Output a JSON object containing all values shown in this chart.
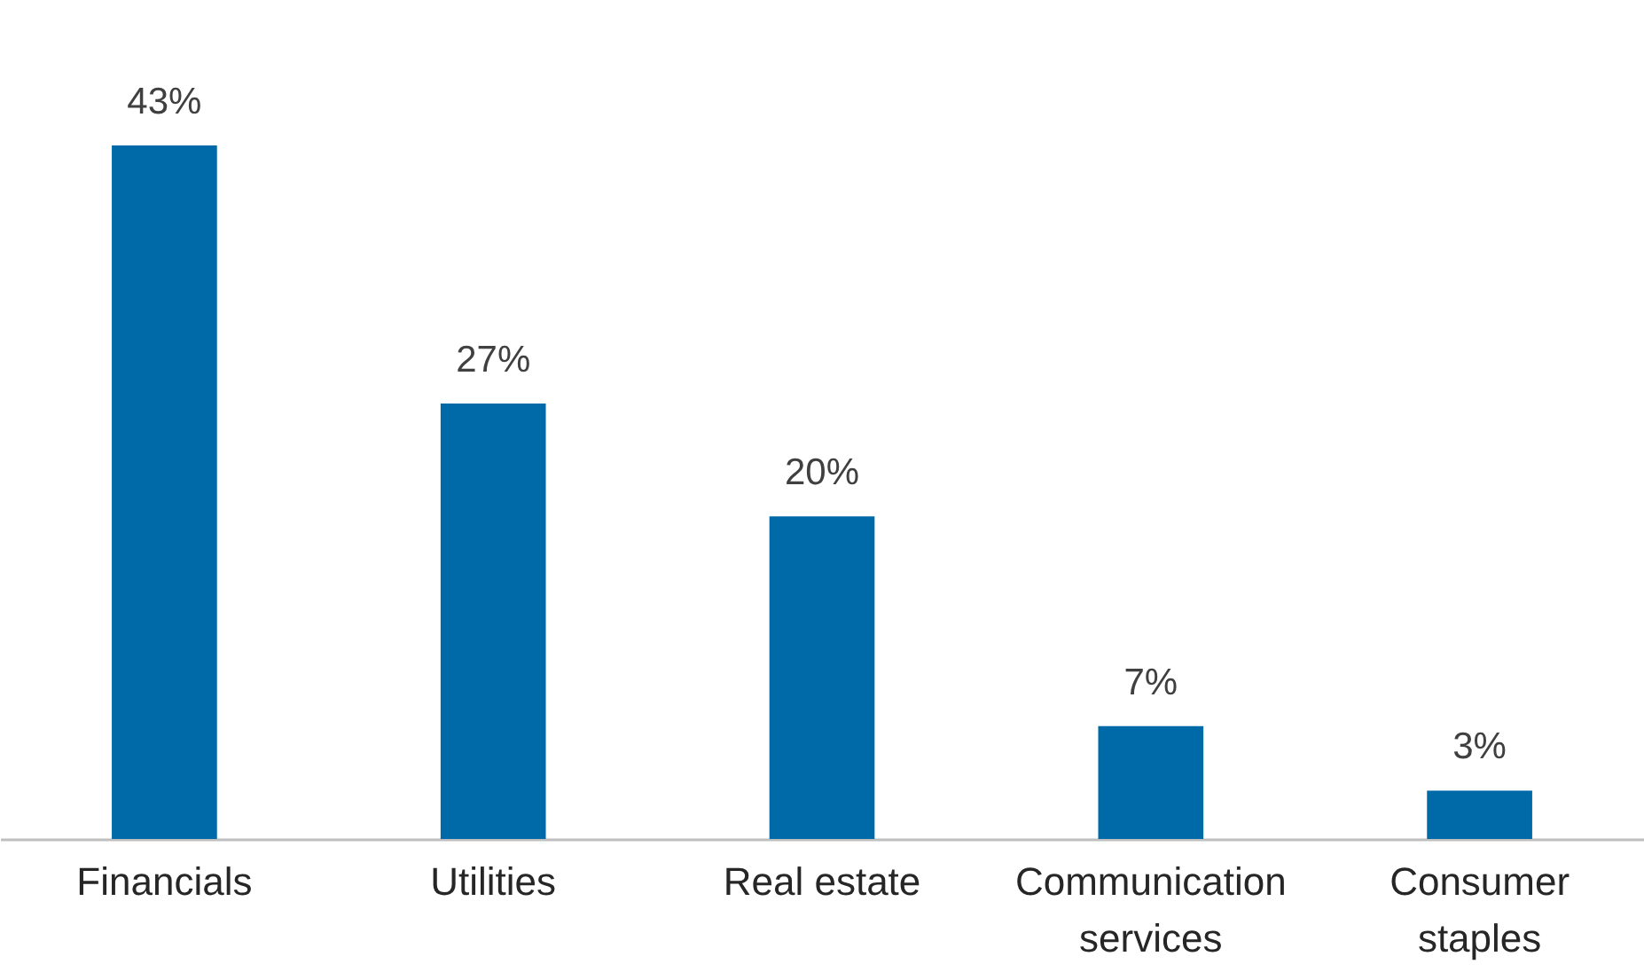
{
  "chart_data": {
    "type": "bar",
    "categories": [
      "Financials",
      "Utilities",
      "Real estate",
      "Communication services",
      "Consumer staples"
    ],
    "values": [
      43,
      27,
      20,
      7,
      3
    ],
    "value_labels": [
      "43%",
      "27%",
      "20%",
      "7%",
      "3%"
    ],
    "color": "#006aa9"
  }
}
